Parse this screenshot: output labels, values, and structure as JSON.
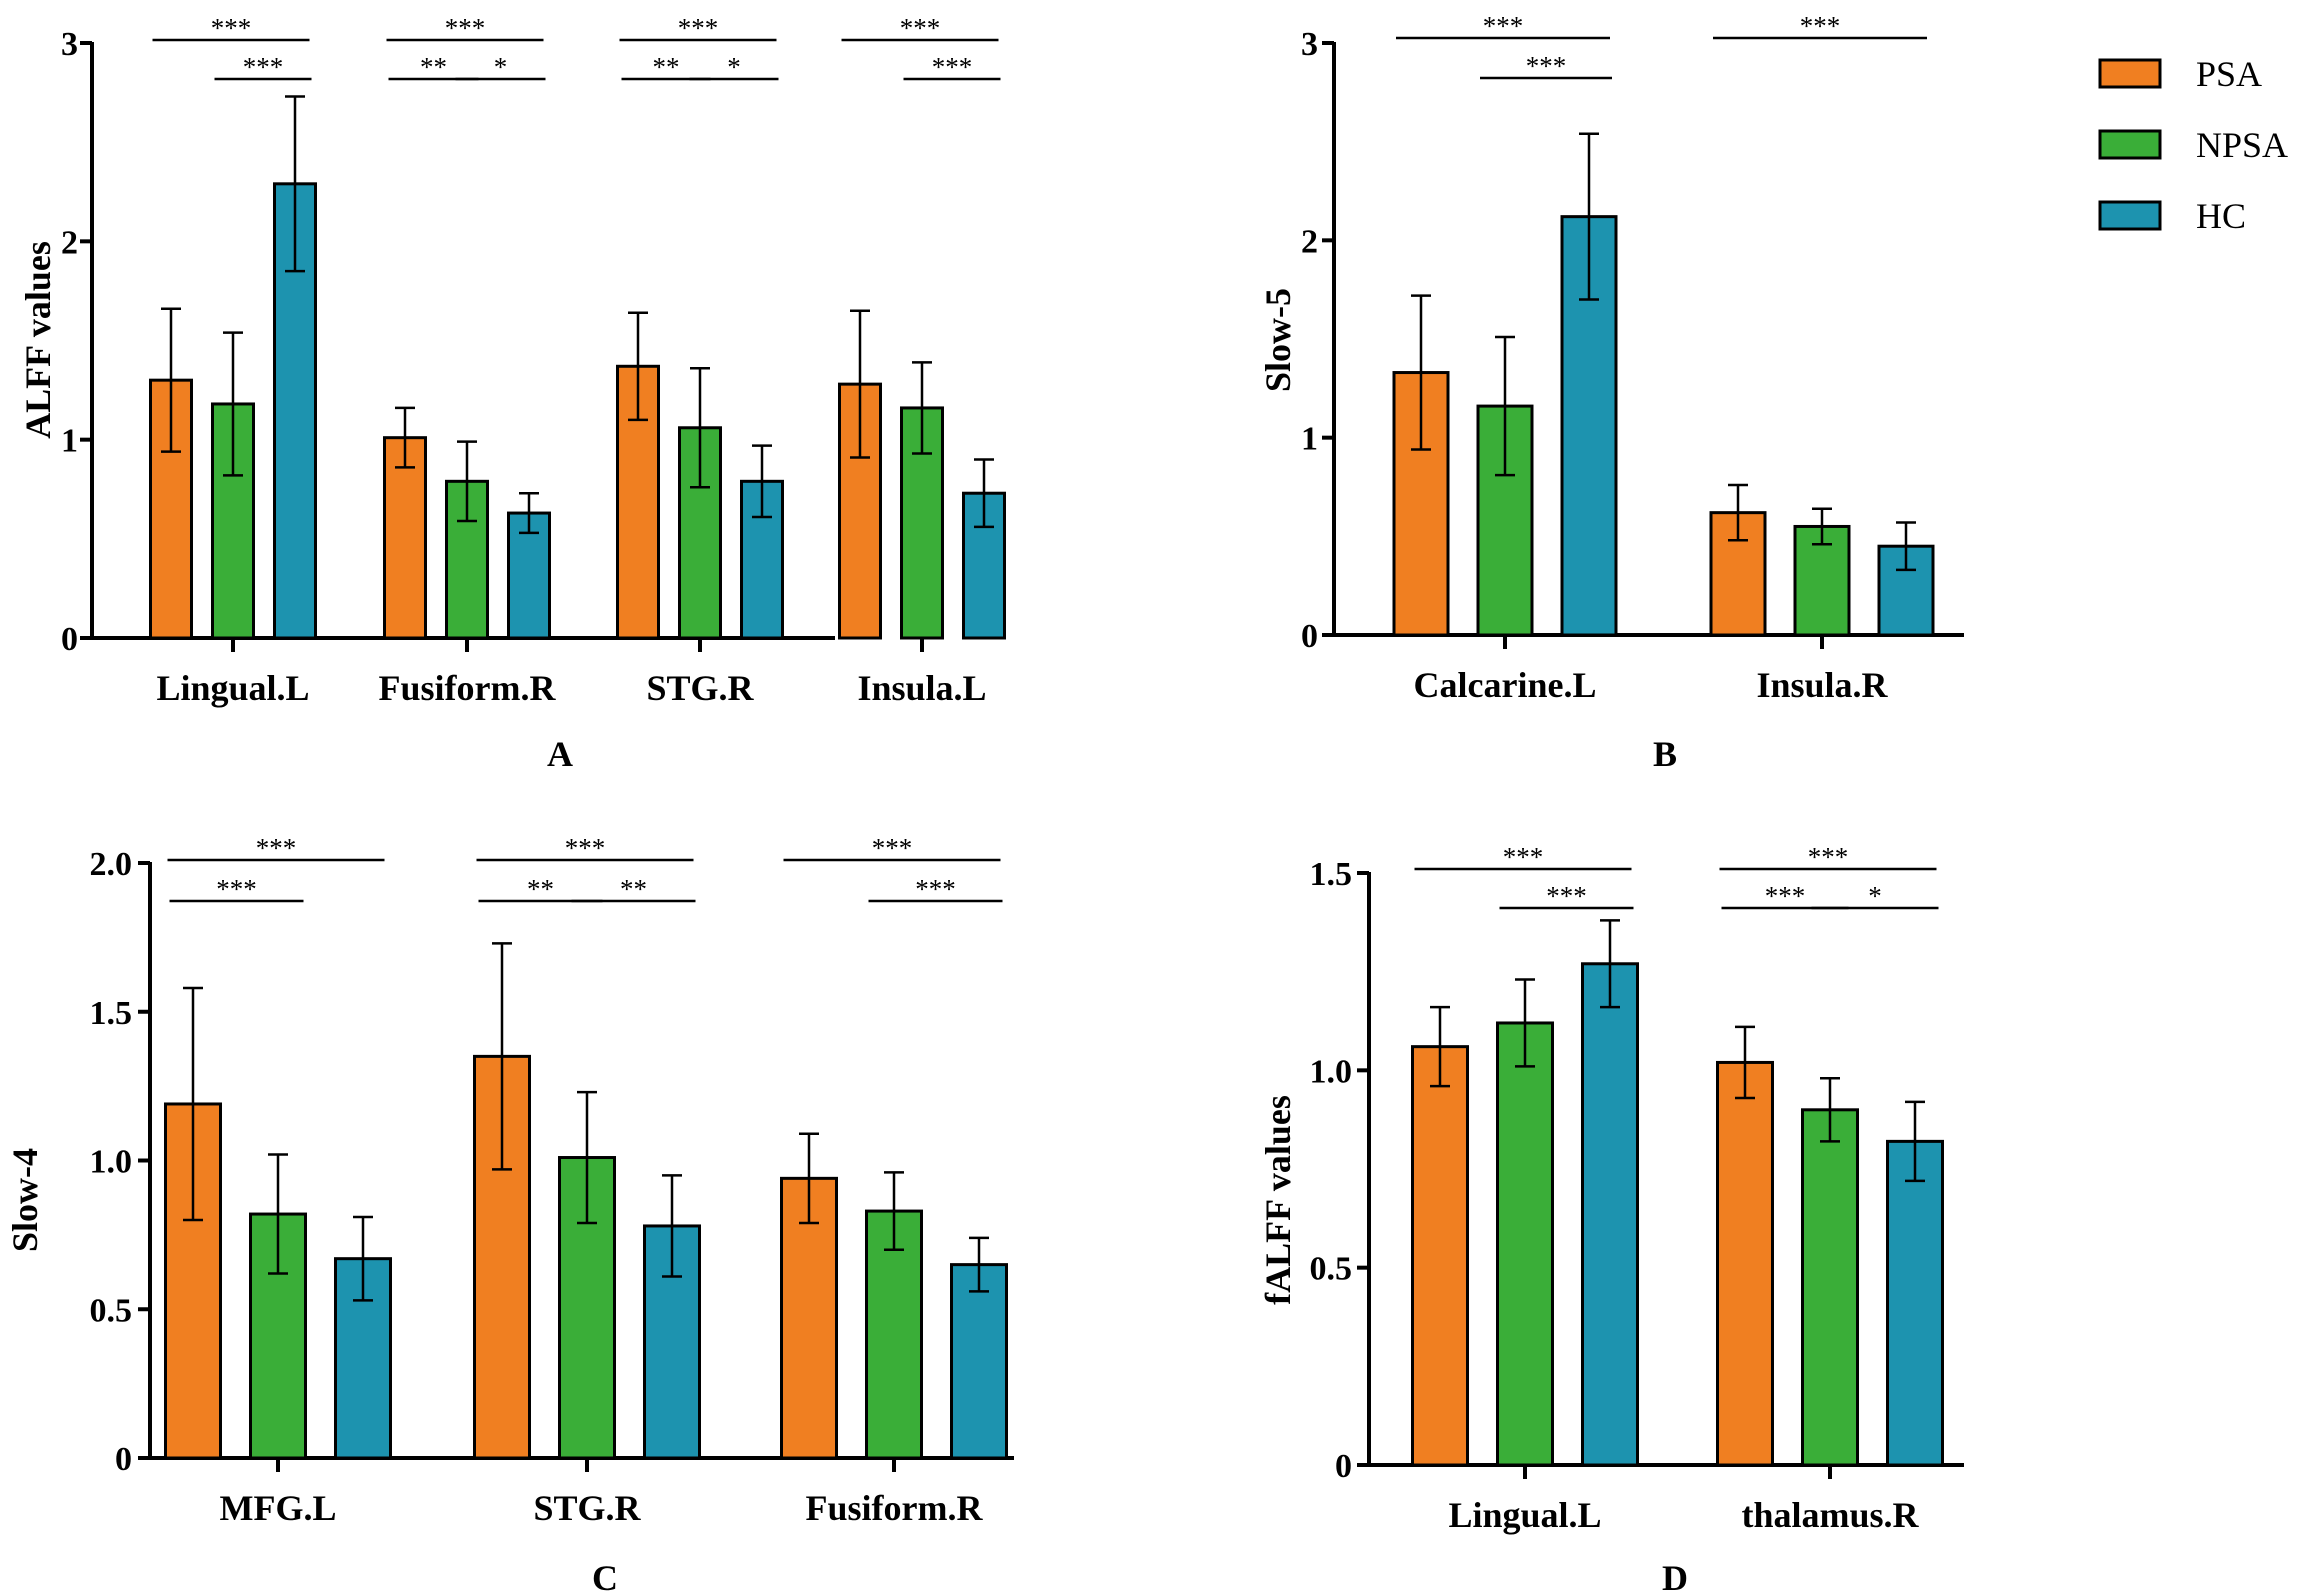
{
  "legend": [
    {
      "name": "PSA",
      "color": "#F07F21"
    },
    {
      "name": "NPSA",
      "color": "#3AAE38"
    },
    {
      "name": "HC",
      "color": "#1D93AF"
    }
  ],
  "chart_data": [
    {
      "type": "bar",
      "panel": "A",
      "ylabel": "ALFF values",
      "ylim": [
        0,
        3
      ],
      "yticks": [
        "0",
        "1",
        "2",
        "3"
      ],
      "categories": [
        "Lingual.L",
        "Fusiform.R",
        "STG.R",
        "Insula.L"
      ],
      "series": [
        {
          "name": "PSA",
          "values": [
            1.3,
            1.01,
            1.37,
            1.28
          ],
          "errors": [
            0.36,
            0.15,
            0.27,
            0.37
          ]
        },
        {
          "name": "NPSA",
          "values": [
            1.18,
            0.79,
            1.06,
            1.16
          ],
          "errors": [
            0.36,
            0.2,
            0.3,
            0.23
          ]
        },
        {
          "name": "HC",
          "values": [
            2.29,
            0.63,
            0.79,
            0.73
          ],
          "errors": [
            0.44,
            0.1,
            0.18,
            0.17
          ]
        }
      ],
      "significance": [
        {
          "category": 0,
          "from": 0,
          "to": 2,
          "label": "***",
          "level": 0
        },
        {
          "category": 0,
          "from": 1,
          "to": 2,
          "label": "***",
          "level": 1
        },
        {
          "category": 1,
          "from": 0,
          "to": 2,
          "label": "***",
          "level": 0
        },
        {
          "category": 1,
          "from": 0,
          "to": 1,
          "label": "**",
          "level": 1
        },
        {
          "category": 1,
          "from": 1,
          "to": 2,
          "label": "*",
          "level": 1
        },
        {
          "category": 2,
          "from": 0,
          "to": 2,
          "label": "***",
          "level": 0
        },
        {
          "category": 2,
          "from": 0,
          "to": 1,
          "label": "**",
          "level": 1
        },
        {
          "category": 2,
          "from": 1,
          "to": 2,
          "label": "*",
          "level": 1
        },
        {
          "category": 3,
          "from": 0,
          "to": 2,
          "label": "***",
          "level": 0
        },
        {
          "category": 3,
          "from": 1,
          "to": 2,
          "label": "***",
          "level": 1
        }
      ]
    },
    {
      "type": "bar",
      "panel": "B",
      "ylabel": "Slow-5",
      "ylim": [
        0,
        3
      ],
      "yticks": [
        "0",
        "1",
        "2",
        "3"
      ],
      "categories": [
        "Calcarine.L",
        "Insula.R"
      ],
      "series": [
        {
          "name": "PSA",
          "values": [
            1.33,
            0.62
          ],
          "errors": [
            0.39,
            0.14
          ]
        },
        {
          "name": "NPSA",
          "values": [
            1.16,
            0.55
          ],
          "errors": [
            0.35,
            0.09
          ]
        },
        {
          "name": "HC",
          "values": [
            2.12,
            0.45
          ],
          "errors": [
            0.42,
            0.12
          ]
        }
      ],
      "significance": [
        {
          "category": 0,
          "from": 0,
          "to": 2,
          "label": "***",
          "level": 0
        },
        {
          "category": 0,
          "from": 1,
          "to": 2,
          "label": "***",
          "level": 1
        },
        {
          "category": 1,
          "from": 0,
          "to": 2,
          "label": "***",
          "level": 0
        }
      ]
    },
    {
      "type": "bar",
      "panel": "C",
      "ylabel": "Slow-4",
      "ylim": [
        0,
        2
      ],
      "yticks": [
        "0",
        "0.5",
        "1.0",
        "1.5",
        "2.0"
      ],
      "categories": [
        "MFG.L",
        "STG.R",
        "Fusiform.R"
      ],
      "series": [
        {
          "name": "PSA",
          "values": [
            1.19,
            1.35,
            0.94
          ],
          "errors": [
            0.39,
            0.38,
            0.15
          ]
        },
        {
          "name": "NPSA",
          "values": [
            0.82,
            1.01,
            0.83
          ],
          "errors": [
            0.2,
            0.22,
            0.13
          ]
        },
        {
          "name": "HC",
          "values": [
            0.67,
            0.78,
            0.65
          ],
          "errors": [
            0.14,
            0.17,
            0.09
          ]
        }
      ],
      "significance": [
        {
          "category": 0,
          "from": 0,
          "to": 2,
          "label": "***",
          "level": 0
        },
        {
          "category": 0,
          "from": 0,
          "to": 1,
          "label": "***",
          "level": 1
        },
        {
          "category": 1,
          "from": 0,
          "to": 2,
          "label": "***",
          "level": 0
        },
        {
          "category": 1,
          "from": 0,
          "to": 1,
          "label": "**",
          "level": 1
        },
        {
          "category": 1,
          "from": 1,
          "to": 2,
          "label": "**",
          "level": 1
        },
        {
          "category": 2,
          "from": 0,
          "to": 2,
          "label": "***",
          "level": 0
        },
        {
          "category": 2,
          "from": 1,
          "to": 2,
          "label": "***",
          "level": 1
        }
      ]
    },
    {
      "type": "bar",
      "panel": "D",
      "ylabel": "fALFF values",
      "ylim": [
        0,
        1.5
      ],
      "yticks": [
        "0",
        "0.5",
        "1.0",
        "1.5"
      ],
      "categories": [
        "Lingual.L",
        "thalamus.R"
      ],
      "series": [
        {
          "name": "PSA",
          "values": [
            1.06,
            1.02
          ],
          "errors": [
            0.1,
            0.09
          ]
        },
        {
          "name": "NPSA",
          "values": [
            1.12,
            0.9
          ],
          "errors": [
            0.11,
            0.08
          ]
        },
        {
          "name": "HC",
          "values": [
            1.27,
            0.82
          ],
          "errors": [
            0.11,
            0.1
          ]
        }
      ],
      "significance": [
        {
          "category": 0,
          "from": 0,
          "to": 2,
          "label": "***",
          "level": 0
        },
        {
          "category": 0,
          "from": 1,
          "to": 2,
          "label": "***",
          "level": 1
        },
        {
          "category": 1,
          "from": 0,
          "to": 2,
          "label": "***",
          "level": 0
        },
        {
          "category": 1,
          "from": 0,
          "to": 1,
          "label": "***",
          "level": 1
        },
        {
          "category": 1,
          "from": 1,
          "to": 2,
          "label": "*",
          "level": 1
        }
      ]
    }
  ]
}
